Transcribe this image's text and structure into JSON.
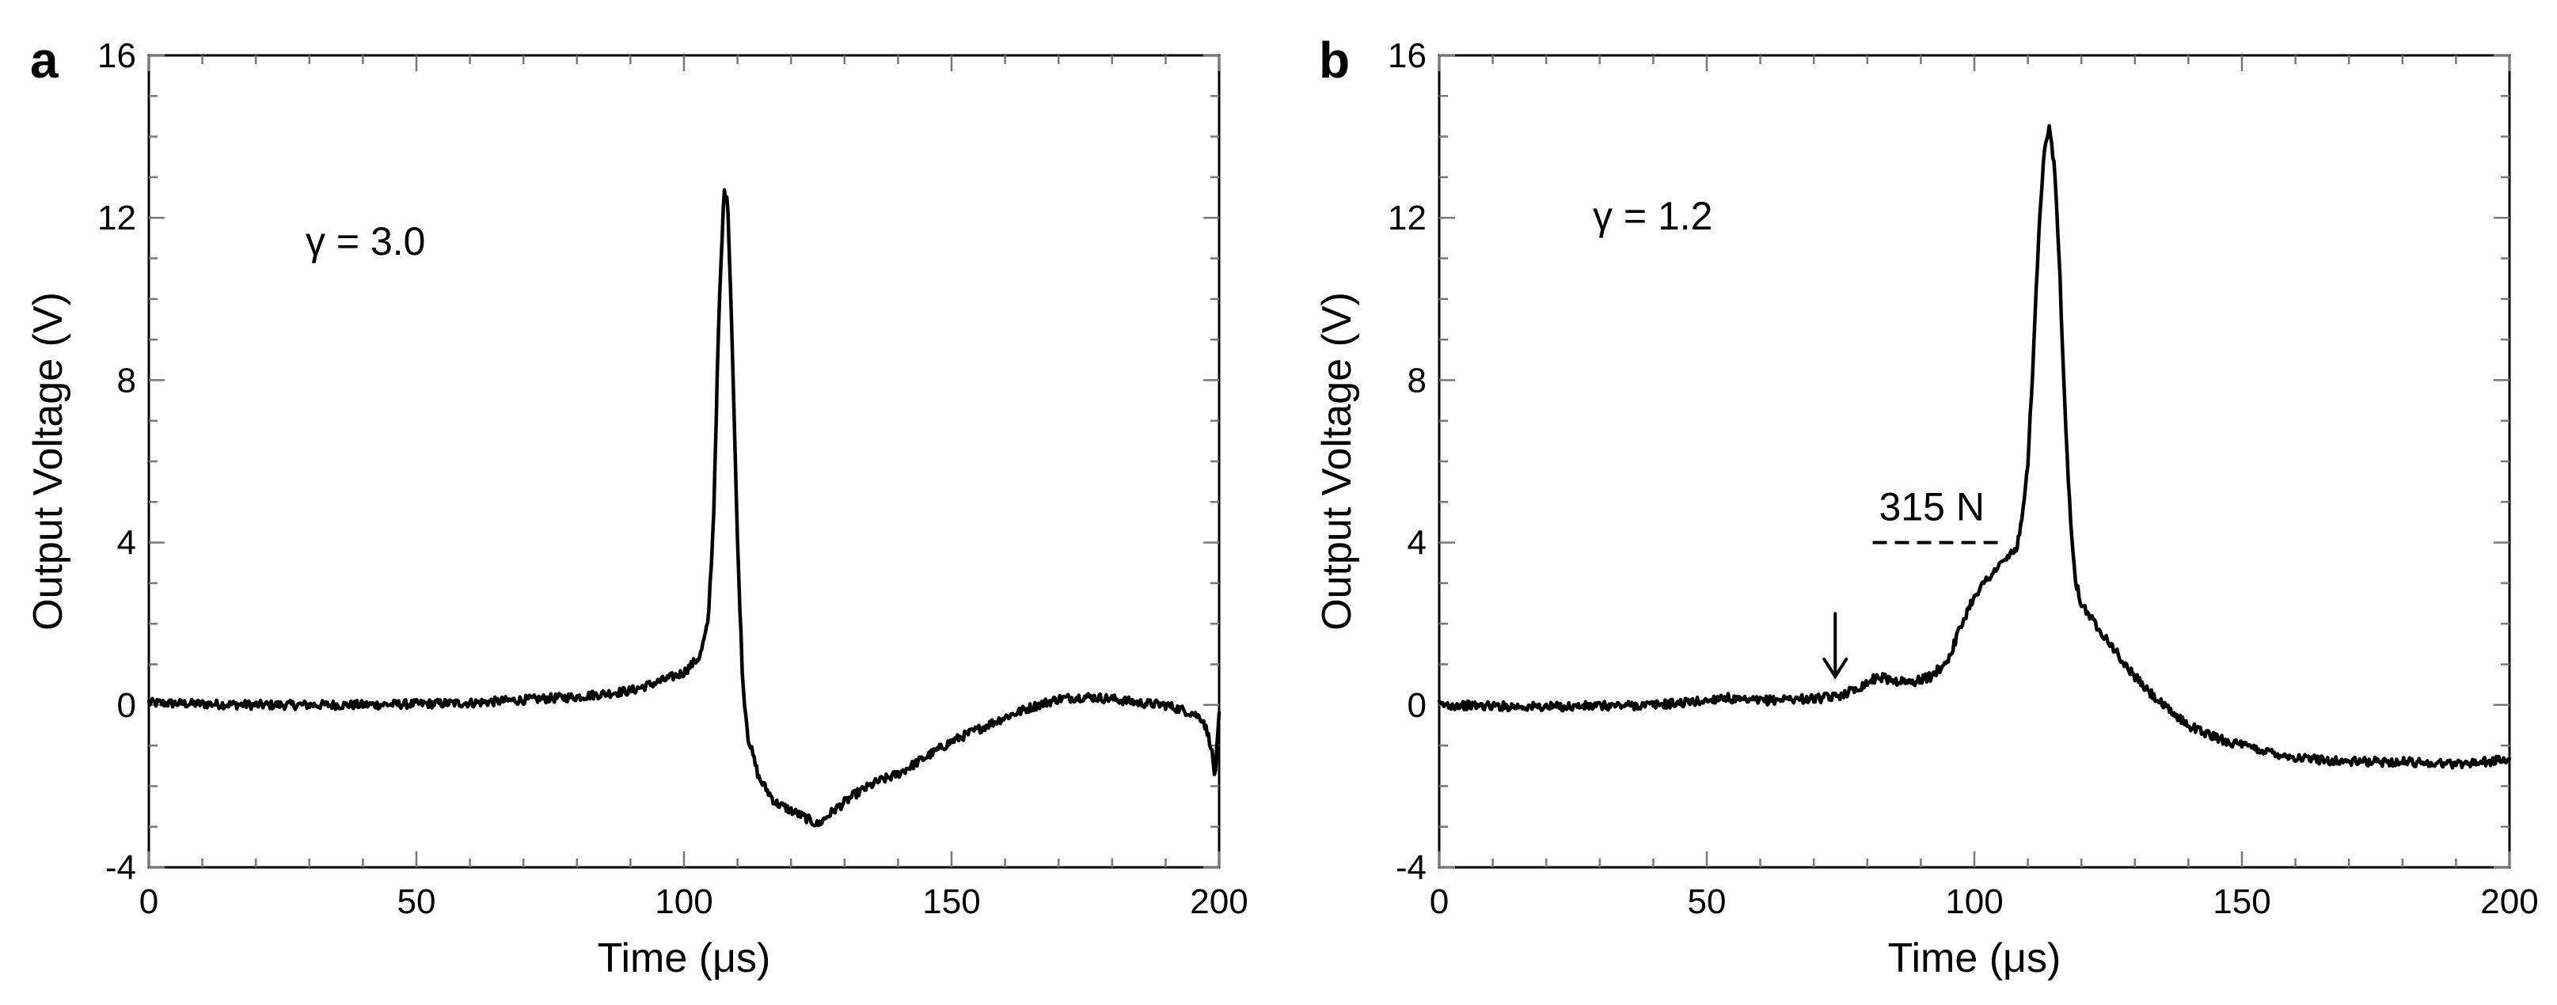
{
  "chart_data": [
    {
      "type": "line",
      "panel_label": "a",
      "annotation": "γ = 3.0",
      "xlabel": "Time (μs)",
      "ylabel": "Output Voltage (V)",
      "xlim": [
        0,
        200
      ],
      "ylim": [
        -4,
        16
      ],
      "xticks": [
        0,
        50,
        100,
        150,
        200
      ],
      "yticks": [
        -4,
        0,
        4,
        8,
        12,
        16
      ],
      "series": [
        {
          "name": "output",
          "x": [
            0,
            20,
            40,
            60,
            80,
            90,
            96,
            100,
            103,
            104.5,
            105.5,
            106.5,
            107.5,
            108.2,
            109,
            110,
            111,
            112,
            114,
            117,
            120,
            123,
            125,
            128,
            132,
            136,
            140,
            145,
            150,
            155,
            160,
            165,
            170,
            175,
            180,
            185,
            190,
            195,
            197,
            198.5,
            199.2,
            200
          ],
          "y": [
            0.05,
            0.0,
            0.0,
            0.05,
            0.2,
            0.35,
            0.6,
            0.8,
            1.2,
            2.0,
            4.5,
            9.5,
            12.7,
            12.3,
            9.0,
            4.0,
            0.5,
            -0.8,
            -1.8,
            -2.4,
            -2.6,
            -2.8,
            -2.95,
            -2.6,
            -2.2,
            -1.9,
            -1.7,
            -1.3,
            -0.9,
            -0.6,
            -0.3,
            -0.05,
            0.15,
            0.2,
            0.15,
            0.05,
            0.0,
            -0.2,
            -0.35,
            -1.0,
            -1.8,
            -0.3
          ]
        }
      ]
    },
    {
      "type": "line",
      "panel_label": "b",
      "annotation": "γ = 1.2",
      "threshold_label": "315 N",
      "threshold_y": 4,
      "threshold_x": [
        81,
        105
      ],
      "arrow_x": 74,
      "xlabel": "Time (μs)",
      "ylabel": "Output Voltage (V)",
      "xlim": [
        0,
        200
      ],
      "ylim": [
        -4,
        16
      ],
      "xticks": [
        0,
        50,
        100,
        150,
        200
      ],
      "yticks": [
        -4,
        0,
        4,
        8,
        12,
        16
      ],
      "series": [
        {
          "name": "output",
          "x": [
            0,
            20,
            40,
            50,
            53,
            56,
            60,
            65,
            70,
            74,
            78,
            82,
            85,
            88,
            92,
            95,
            98,
            100,
            103,
            106,
            108,
            109,
            110,
            111,
            112,
            113,
            114,
            115,
            116,
            117,
            118,
            119,
            120,
            122,
            125,
            128,
            132,
            136,
            140,
            145,
            150,
            160,
            170,
            180,
            190,
            200
          ],
          "y": [
            0.0,
            -0.05,
            0.0,
            0.1,
            0.2,
            0.1,
            0.1,
            0.15,
            0.15,
            0.2,
            0.4,
            0.7,
            0.6,
            0.55,
            0.7,
            1.1,
            2.1,
            2.7,
            3.2,
            3.6,
            3.9,
            4.6,
            6.0,
            8.5,
            11.5,
            13.5,
            14.2,
            13.2,
            10.5,
            7.0,
            4.5,
            3.0,
            2.5,
            2.1,
            1.6,
            1.0,
            0.4,
            -0.1,
            -0.5,
            -0.8,
            -1.0,
            -1.3,
            -1.4,
            -1.4,
            -1.45,
            -1.35
          ]
        }
      ]
    }
  ]
}
